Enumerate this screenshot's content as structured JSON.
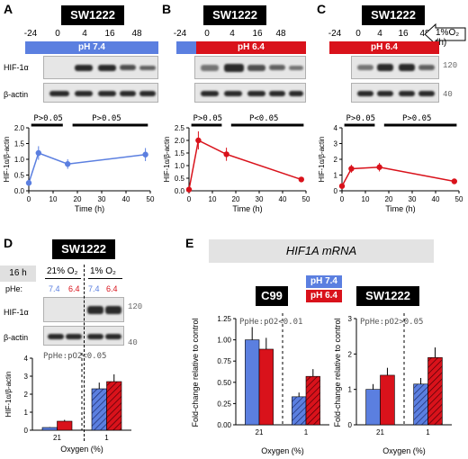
{
  "colors": {
    "blue": "#5b7fe0",
    "red": "#d9121b",
    "black": "#000000"
  },
  "panelA": {
    "letter": "A",
    "cell": "SW1222",
    "times": [
      "-24",
      "0",
      "4",
      "16",
      "48"
    ],
    "condition": "pH 7.4",
    "hif": "HIF-1α",
    "actin": "β-actin",
    "sig1": "P>0.05",
    "sig2": "P>0.05",
    "ylabel": "HIF-1α/β-actin",
    "xlabel": "Time (h)",
    "yticks": [
      "0.0",
      "0.5",
      "1.0",
      "1.5",
      "2.0"
    ],
    "xticks": [
      "0",
      "10",
      "20",
      "30",
      "40",
      "50"
    ]
  },
  "panelB": {
    "letter": "B",
    "cell": "SW1222",
    "times": [
      "-24",
      "0",
      "4",
      "16",
      "48"
    ],
    "condition": "pH 6.4",
    "sig1": "P>0.05",
    "sig2": "P<0.05",
    "ylabel": "HIF-1α/β-actin",
    "xlabel": "Time (h)",
    "yticks": [
      "0.0",
      "0.5",
      "1.0",
      "1.5",
      "2.0",
      "2.5"
    ],
    "xticks": [
      "0",
      "10",
      "20",
      "30",
      "40",
      "50"
    ]
  },
  "panelC": {
    "letter": "C",
    "cell": "SW1222",
    "times": [
      "-24",
      "0",
      "4",
      "16",
      "48"
    ],
    "condition": "pH 6.4",
    "arrow": "1%O₂ (h)",
    "mw1": "120",
    "mw2": "40",
    "sig1": "P>0.05",
    "sig2": "P>0.05",
    "ylabel": "HIF-1α/β-actin",
    "xlabel": "Time (h)",
    "yticks": [
      "0",
      "1",
      "2",
      "3",
      "4"
    ],
    "xticks": [
      "0",
      "10",
      "20",
      "30",
      "40",
      "50"
    ]
  },
  "panelD": {
    "letter": "D",
    "cell": "SW1222",
    "duration": "16 h",
    "o2_21": "21% O₂",
    "o2_1": "1% O₂",
    "phe": "pHe:",
    "ph_a": "7.4",
    "ph_b": "6.4",
    "ph_c": "7.4",
    "ph_d": "6.4",
    "hif": "HIF-1α",
    "actin": "β-actin",
    "mw1": "120",
    "mw2": "40",
    "sig": "PpHe:pO2<0.05",
    "ylabel": "HIF-1α/β-actin",
    "xlabel": "Oxygen (%)",
    "xcats": [
      "21",
      "1"
    ],
    "yticks": [
      "0",
      "1",
      "2",
      "3",
      "4"
    ]
  },
  "panelE": {
    "letter": "E",
    "title": "HIF1A mRNA",
    "legend74": "pH 7.4",
    "legend64": "pH 6.4",
    "left": "C99",
    "right": "SW1222",
    "sigL": "PpHe:pO2<0.01",
    "sigR": "PpHe:pO2>0.05",
    "ylabel": "Fold-change relative to control",
    "xlabel": "Oxygen (%)",
    "xcats": [
      "21",
      "1"
    ],
    "ytL": [
      "0.00",
      "0.25",
      "0.50",
      "0.75",
      "1.00",
      "1.25"
    ],
    "ytR": [
      "0",
      "1",
      "2",
      "3"
    ]
  },
  "chart_data": [
    {
      "type": "line",
      "panel": "A",
      "xlabel": "Time (h)",
      "ylabel": "HIF-1α/β-actin",
      "x": [
        0,
        4,
        16,
        48
      ],
      "series": [
        {
          "values": [
            0.25,
            1.2,
            0.85,
            1.15
          ]
        }
      ],
      "ylim": [
        0,
        2.0
      ],
      "xlim": [
        0,
        50
      ]
    },
    {
      "type": "line",
      "panel": "B",
      "xlabel": "Time (h)",
      "ylabel": "HIF-1α/β-actin",
      "x": [
        0,
        4,
        16,
        48
      ],
      "series": [
        {
          "values": [
            0.05,
            2.0,
            1.45,
            0.45
          ]
        }
      ],
      "ylim": [
        0,
        2.5
      ],
      "xlim": [
        0,
        50
      ]
    },
    {
      "type": "line",
      "panel": "C",
      "xlabel": "Time (h)",
      "ylabel": "HIF-1α/β-actin",
      "x": [
        0,
        4,
        16,
        48
      ],
      "series": [
        {
          "values": [
            0.3,
            1.4,
            1.5,
            0.6
          ]
        }
      ],
      "ylim": [
        0,
        4
      ],
      "xlim": [
        0,
        50
      ]
    },
    {
      "type": "bar",
      "panel": "D",
      "xlabel": "Oxygen (%)",
      "ylabel": "HIF-1α/β-actin",
      "categories": [
        "21",
        "1"
      ],
      "series": [
        {
          "name": "pH 7.4",
          "values": [
            0.15,
            2.3
          ]
        },
        {
          "name": "pH 6.4",
          "values": [
            0.5,
            2.7
          ]
        }
      ],
      "ylim": [
        0,
        4
      ]
    },
    {
      "type": "bar",
      "panel": "E-C99",
      "xlabel": "Oxygen (%)",
      "ylabel": "Fold-change relative to control",
      "categories": [
        "21",
        "1"
      ],
      "series": [
        {
          "name": "pH 7.4",
          "values": [
            1.0,
            0.33
          ]
        },
        {
          "name": "pH 6.4",
          "values": [
            0.89,
            0.57
          ]
        }
      ],
      "ylim": [
        0,
        1.25
      ]
    },
    {
      "type": "bar",
      "panel": "E-SW1222",
      "xlabel": "Oxygen (%)",
      "ylabel": "Fold-change relative to control",
      "categories": [
        "21",
        "1"
      ],
      "series": [
        {
          "name": "pH 7.4",
          "values": [
            1.0,
            1.15
          ]
        },
        {
          "name": "pH 6.4",
          "values": [
            1.4,
            1.9
          ]
        }
      ],
      "ylim": [
        0,
        3
      ]
    }
  ]
}
